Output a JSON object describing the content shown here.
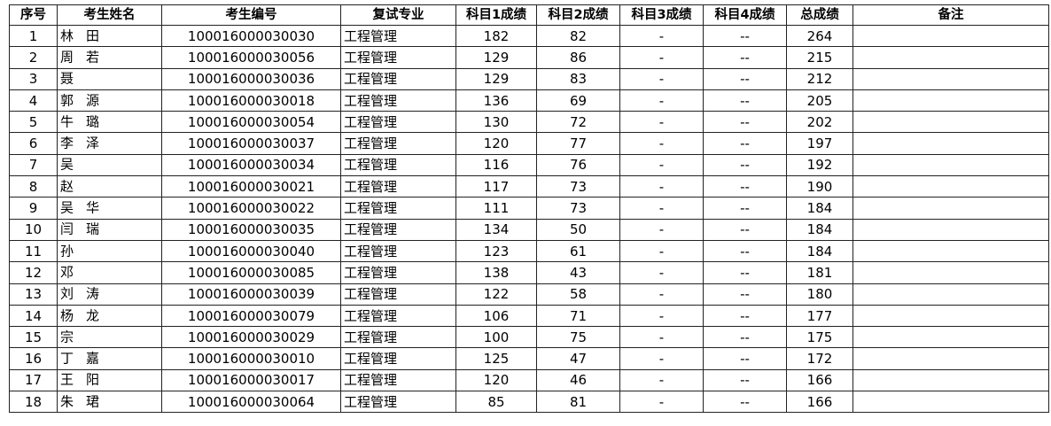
{
  "headers": [
    "序号",
    "考生姓名",
    "考生编号",
    "复试专业",
    "科目1成绩",
    "科目2成绩",
    "科目3成绩",
    "科目4成绩",
    "总成绩",
    "备注"
  ],
  "rows": [
    {
      "no": "1",
      "surname": "林",
      "given": "田",
      "id": "100016000030030",
      "major": "工程管理",
      "s1": "182",
      "s2": "82",
      "s3": "-",
      "s4": "--",
      "total": "264",
      "note": ""
    },
    {
      "no": "2",
      "surname": "周",
      "given": "若",
      "id": "100016000030056",
      "major": "工程管理",
      "s1": "129",
      "s2": "86",
      "s3": "-",
      "s4": "--",
      "total": "215",
      "note": ""
    },
    {
      "no": "3",
      "surname": "聂",
      "given": "",
      "id": "100016000030036",
      "major": "工程管理",
      "s1": "129",
      "s2": "83",
      "s3": "-",
      "s4": "--",
      "total": "212",
      "note": ""
    },
    {
      "no": "4",
      "surname": "郭",
      "given": "源",
      "id": "100016000030018",
      "major": "工程管理",
      "s1": "136",
      "s2": "69",
      "s3": "-",
      "s4": "--",
      "total": "205",
      "note": ""
    },
    {
      "no": "5",
      "surname": "牛",
      "given": "璐",
      "id": "100016000030054",
      "major": "工程管理",
      "s1": "130",
      "s2": "72",
      "s3": "-",
      "s4": "--",
      "total": "202",
      "note": ""
    },
    {
      "no": "6",
      "surname": "李",
      "given": "泽",
      "id": "100016000030037",
      "major": "工程管理",
      "s1": "120",
      "s2": "77",
      "s3": "-",
      "s4": "--",
      "total": "197",
      "note": ""
    },
    {
      "no": "7",
      "surname": "吴",
      "given": "",
      "id": "100016000030034",
      "major": "工程管理",
      "s1": "116",
      "s2": "76",
      "s3": "-",
      "s4": "--",
      "total": "192",
      "note": ""
    },
    {
      "no": "8",
      "surname": "赵",
      "given": "",
      "id": "100016000030021",
      "major": "工程管理",
      "s1": "117",
      "s2": "73",
      "s3": "-",
      "s4": "--",
      "total": "190",
      "note": ""
    },
    {
      "no": "9",
      "surname": "吴",
      "given": "华",
      "id": "100016000030022",
      "major": "工程管理",
      "s1": "111",
      "s2": "73",
      "s3": "-",
      "s4": "--",
      "total": "184",
      "note": ""
    },
    {
      "no": "10",
      "surname": "闫",
      "given": "瑞",
      "id": "100016000030035",
      "major": "工程管理",
      "s1": "134",
      "s2": "50",
      "s3": "-",
      "s4": "--",
      "total": "184",
      "note": ""
    },
    {
      "no": "11",
      "surname": "孙",
      "given": "",
      "id": "100016000030040",
      "major": "工程管理",
      "s1": "123",
      "s2": "61",
      "s3": "-",
      "s4": "--",
      "total": "184",
      "note": ""
    },
    {
      "no": "12",
      "surname": "邓",
      "given": "",
      "id": "100016000030085",
      "major": "工程管理",
      "s1": "138",
      "s2": "43",
      "s3": "-",
      "s4": "--",
      "total": "181",
      "note": ""
    },
    {
      "no": "13",
      "surname": "刘",
      "given": "涛",
      "id": "100016000030039",
      "major": "工程管理",
      "s1": "122",
      "s2": "58",
      "s3": "-",
      "s4": "--",
      "total": "180",
      "note": ""
    },
    {
      "no": "14",
      "surname": "杨",
      "given": "龙",
      "id": "100016000030079",
      "major": "工程管理",
      "s1": "106",
      "s2": "71",
      "s3": "-",
      "s4": "--",
      "total": "177",
      "note": ""
    },
    {
      "no": "15",
      "surname": "宗",
      "given": "",
      "id": "100016000030029",
      "major": "工程管理",
      "s1": "100",
      "s2": "75",
      "s3": "-",
      "s4": "--",
      "total": "175",
      "note": ""
    },
    {
      "no": "16",
      "surname": "丁",
      "given": "嘉",
      "id": "100016000030010",
      "major": "工程管理",
      "s1": "125",
      "s2": "47",
      "s3": "-",
      "s4": "--",
      "total": "172",
      "note": ""
    },
    {
      "no": "17",
      "surname": "王",
      "given": "阳",
      "id": "100016000030017",
      "major": "工程管理",
      "s1": "120",
      "s2": "46",
      "s3": "-",
      "s4": "--",
      "total": "166",
      "note": ""
    },
    {
      "no": "18",
      "surname": "朱",
      "given": "珺",
      "id": "100016000030064",
      "major": "工程管理",
      "s1": "85",
      "s2": "81",
      "s3": "-",
      "s4": "--",
      "total": "166",
      "note": ""
    }
  ]
}
